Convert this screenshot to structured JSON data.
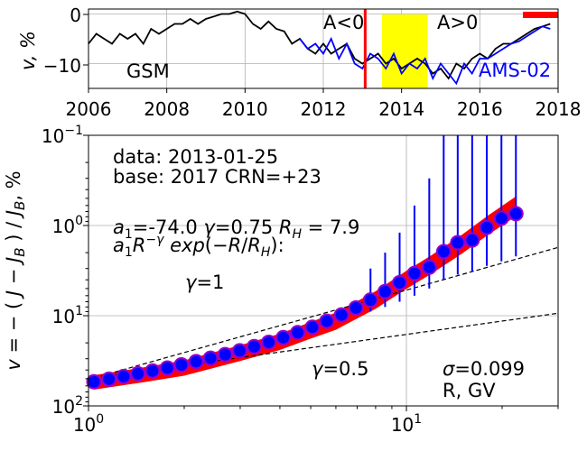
{
  "top_panel": {
    "ylabel": "v, %",
    "x_ticks": [
      "2006",
      "2008",
      "2010",
      "2012",
      "2014",
      "2016",
      "2018"
    ],
    "y_ticks": [
      "0",
      "−10"
    ],
    "label_gsm": "GSM",
    "label_ams": "AMS-02",
    "label_neg": "A<0",
    "label_pos": "A>0"
  },
  "bottom_panel": {
    "ylabel": "v = − ( J − J_B ) / J_B , %",
    "xlabel": "R, GV",
    "x_ticks": [
      "10^0",
      "10^1"
    ],
    "y_ticks": [
      "10^-1",
      "10^0",
      "10^1",
      "10^2"
    ],
    "ann_data": "data: 2013-01-25",
    "ann_base": "base: 2017   CRN=+23",
    "ann_params": "a₁=-74.0  γ=0.75  R_H =  7.9",
    "ann_formula": "a₁R^−γ exp(−R/R_H):",
    "ann_gamma1": "γ=1",
    "ann_gamma05": "γ=0.5",
    "ann_sigma": "σ=0.099"
  },
  "colors": {
    "gsm": "#000000",
    "ams": "#0000ff",
    "marker_fill": "#0000ff",
    "marker_edge": "#9900cc",
    "fit_band": "#ff0000",
    "highlight": "#ffff00",
    "vline": "#ff0000",
    "grid": "#b0b0b0"
  },
  "chart_data": [
    {
      "type": "line",
      "xlim": [
        2006,
        2018
      ],
      "ylim": [
        -15,
        1
      ],
      "grid": true,
      "series": [
        {
          "name": "GSM",
          "x": [
            2006.0,
            2006.2,
            2006.4,
            2006.6,
            2006.8,
            2007.0,
            2007.2,
            2007.4,
            2007.6,
            2007.8,
            2008.0,
            2008.2,
            2008.4,
            2008.6,
            2008.8,
            2009.0,
            2009.2,
            2009.4,
            2009.6,
            2009.8,
            2010.0,
            2010.2,
            2010.4,
            2010.6,
            2010.8,
            2011.0,
            2011.2,
            2011.4,
            2011.6,
            2011.8,
            2012.0,
            2012.2,
            2012.4,
            2012.6,
            2012.8,
            2013.0,
            2013.2,
            2013.4,
            2013.6,
            2013.8,
            2014.0,
            2014.2,
            2014.4,
            2014.6,
            2014.8,
            2015.0,
            2015.2,
            2015.4,
            2015.6,
            2015.8,
            2016.0,
            2016.2,
            2016.4,
            2016.6,
            2016.8,
            2017.0,
            2017.2,
            2017.4,
            2017.6,
            2017.8
          ],
          "values": [
            -6,
            -4,
            -5,
            -6,
            -4,
            -5,
            -4,
            -6,
            -3,
            -4,
            -3,
            -2,
            -2,
            -1,
            -2,
            -1,
            -0.5,
            0,
            0,
            0.5,
            0,
            -2,
            -3,
            -1.5,
            -3,
            -3.5,
            -6,
            -5,
            -7,
            -8,
            -6,
            -8,
            -7,
            -6,
            -9,
            -10,
            -9,
            -8,
            -10,
            -9,
            -11,
            -10,
            -9,
            -10,
            -12,
            -11,
            -13,
            -10,
            -11,
            -9,
            -8,
            -9,
            -7,
            -6,
            -6,
            -5,
            -4,
            -3,
            -2.5,
            -2
          ]
        },
        {
          "name": "AMS-02",
          "x": [
            2011.4,
            2011.6,
            2011.8,
            2012.0,
            2012.2,
            2012.4,
            2012.6,
            2012.8,
            2013.0,
            2013.2,
            2013.4,
            2013.6,
            2013.8,
            2014.0,
            2014.2,
            2014.4,
            2014.6,
            2014.8,
            2015.0,
            2015.2,
            2015.4,
            2015.6,
            2015.8,
            2016.0,
            2016.2,
            2016.4,
            2016.6,
            2016.8,
            2017.0,
            2017.2,
            2017.4,
            2017.6,
            2017.8
          ],
          "values": [
            -5,
            -7,
            -6,
            -8,
            -5,
            -9,
            -6,
            -10,
            -11,
            -8,
            -9,
            -11,
            -8,
            -12,
            -10,
            -11,
            -9,
            -13,
            -10,
            -12,
            -14,
            -10,
            -12,
            -9,
            -9,
            -8,
            -7,
            -6,
            -5.5,
            -4.5,
            -3.5,
            -2.5,
            -3
          ]
        }
      ],
      "annotations": {
        "vertical_line_x": 2013.07,
        "highlight_span": [
          2013.5,
          2014.67
        ],
        "top_bar_span": [
          2017.1,
          2018.0
        ]
      }
    },
    {
      "type": "scatter",
      "xscale": "log",
      "yscale": "log",
      "y_inverted": true,
      "xlim": [
        1,
        30
      ],
      "ylim": [
        0.1,
        100
      ],
      "grid": true,
      "series": [
        {
          "name": "data",
          "x": [
            1.04,
            1.16,
            1.29,
            1.43,
            1.59,
            1.77,
            1.96,
            2.18,
            2.42,
            2.69,
            2.99,
            3.32,
            3.69,
            4.1,
            4.55,
            5.06,
            5.62,
            6.25,
            6.94,
            7.71,
            8.57,
            9.52,
            10.6,
            11.8,
            13.1,
            14.5,
            16.1,
            17.9,
            19.9,
            22.1
          ],
          "values": [
            54.0,
            50.5,
            47.2,
            44.0,
            41.0,
            38.0,
            35.1,
            32.3,
            29.6,
            27.0,
            24.5,
            22.0,
            19.7,
            17.5,
            15.4,
            13.4,
            11.5,
            9.8,
            8.2,
            6.7,
            5.4,
            4.3,
            3.4,
            2.9,
            1.95,
            1.55,
            1.45,
            1.05,
            0.83,
            0.74
          ],
          "error_high": [
            null,
            null,
            null,
            null,
            null,
            null,
            null,
            null,
            null,
            null,
            null,
            null,
            null,
            null,
            null,
            null,
            null,
            null,
            null,
            9.0,
            8.0,
            7.0,
            6.0,
            5.0,
            4.0,
            3.5,
            3.2,
            2.8,
            2.5,
            2.2
          ],
          "error_low": [
            null,
            null,
            null,
            null,
            null,
            null,
            null,
            null,
            null,
            null,
            null,
            null,
            null,
            null,
            null,
            null,
            null,
            null,
            null,
            3.0,
            2.0,
            1.2,
            0.6,
            0.3,
            0.1,
            0.1,
            0.1,
            0.1,
            0.1,
            0.1
          ]
        },
        {
          "name": "fit",
          "x": [
            1.04,
            1.5,
            2.0,
            3.0,
            4.0,
            5.0,
            6.0,
            8.0,
            10.0,
            12.0,
            15.0,
            18.0,
            22.0
          ],
          "values": [
            55.0,
            45.0,
            38.0,
            26.0,
            19.5,
            14.5,
            11.5,
            6.7,
            4.0,
            2.7,
            1.6,
            1.0,
            0.62
          ]
        },
        {
          "name": "γ=1",
          "x": [
            1.04,
            30
          ],
          "values": [
            49.0,
            1.75
          ]
        },
        {
          "name": "γ=0.5",
          "x": [
            1.04,
            30
          ],
          "values": [
            49.0,
            9.4
          ]
        }
      ]
    }
  ]
}
